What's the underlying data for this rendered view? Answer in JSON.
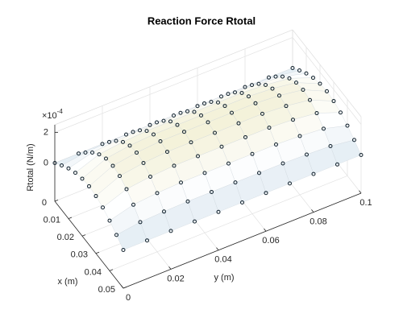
{
  "chart_data": {
    "type": "surface3d",
    "title": "Reaction Force Rtotal",
    "xlabel": "x (m)",
    "ylabel": "y (m)",
    "zlabel": "Rtotal (N/m)",
    "z_multiplier": {
      "base": "×10",
      "exponent": "-4"
    },
    "x": [
      0,
      0.005,
      0.01,
      0.015,
      0.02,
      0.025,
      0.03,
      0.035,
      0.04,
      0.045,
      0.05
    ],
    "y": [
      0,
      0.01,
      0.02,
      0.03,
      0.04,
      0.05,
      0.06,
      0.07,
      0.08,
      0.09,
      0.1
    ],
    "z": [
      [
        0,
        0,
        0,
        0,
        0,
        0,
        0,
        0,
        0,
        0,
        0
      ],
      [
        4.1e-05,
        6.3e-05,
        7e-05,
        7.4e-05,
        7.4e-05,
        7.4e-05,
        7.4e-05,
        7.4e-05,
        7e-05,
        6.3e-05,
        4.1e-05
      ],
      [
        7.8e-05,
        0.00012,
        0.000134,
        0.000141,
        0.000141,
        0.000141,
        0.000141,
        0.000141,
        0.000134,
        0.00012,
        7.8e-05
      ],
      [
        0.000107,
        0.000165,
        0.000184,
        0.000194,
        0.000194,
        0.000194,
        0.000194,
        0.000194,
        0.000184,
        0.000165,
        0.000107
      ],
      [
        0.000125,
        0.000194,
        0.000217,
        0.000228,
        0.000228,
        0.000228,
        0.000228,
        0.000228,
        0.000217,
        0.000194,
        0.000125
      ],
      [
        0.000132,
        0.000204,
        0.000228,
        0.00024,
        0.00024,
        0.00024,
        0.00024,
        0.00024,
        0.000228,
        0.000204,
        0.000132
      ],
      [
        0.000125,
        0.000194,
        0.000217,
        0.000228,
        0.000228,
        0.000228,
        0.000228,
        0.000228,
        0.000217,
        0.000194,
        0.000125
      ],
      [
        0.000107,
        0.000165,
        0.000184,
        0.000194,
        0.000194,
        0.000194,
        0.000194,
        0.000194,
        0.000184,
        0.000165,
        0.000107
      ],
      [
        7.8e-05,
        0.00012,
        0.000134,
        0.000141,
        0.000141,
        0.000141,
        0.000141,
        0.000141,
        0.000134,
        0.00012,
        7.8e-05
      ],
      [
        4.1e-05,
        6.3e-05,
        7e-05,
        7.4e-05,
        7.4e-05,
        7.4e-05,
        7.4e-05,
        7.4e-05,
        7e-05,
        6.3e-05,
        4.1e-05
      ],
      [
        0,
        0,
        0,
        0,
        0,
        0,
        0,
        0,
        0,
        0,
        0
      ]
    ],
    "xlim": [
      0,
      0.05
    ],
    "ylim": [
      0,
      0.1
    ],
    "zlim": [
      -0.00025,
      0.00025
    ],
    "xticks": [
      0,
      0.01,
      0.02,
      0.03,
      0.04,
      0.05
    ],
    "yticks": [
      0,
      0.02,
      0.04,
      0.06,
      0.08,
      0.1
    ],
    "zticks": [
      0,
      {
        "value": 0.0002,
        "label": "2"
      }
    ],
    "grid": true,
    "marker_color": "#10202c",
    "colormap": [
      "#dfeaf2",
      "#ffffff",
      "#f3f1d8"
    ]
  }
}
